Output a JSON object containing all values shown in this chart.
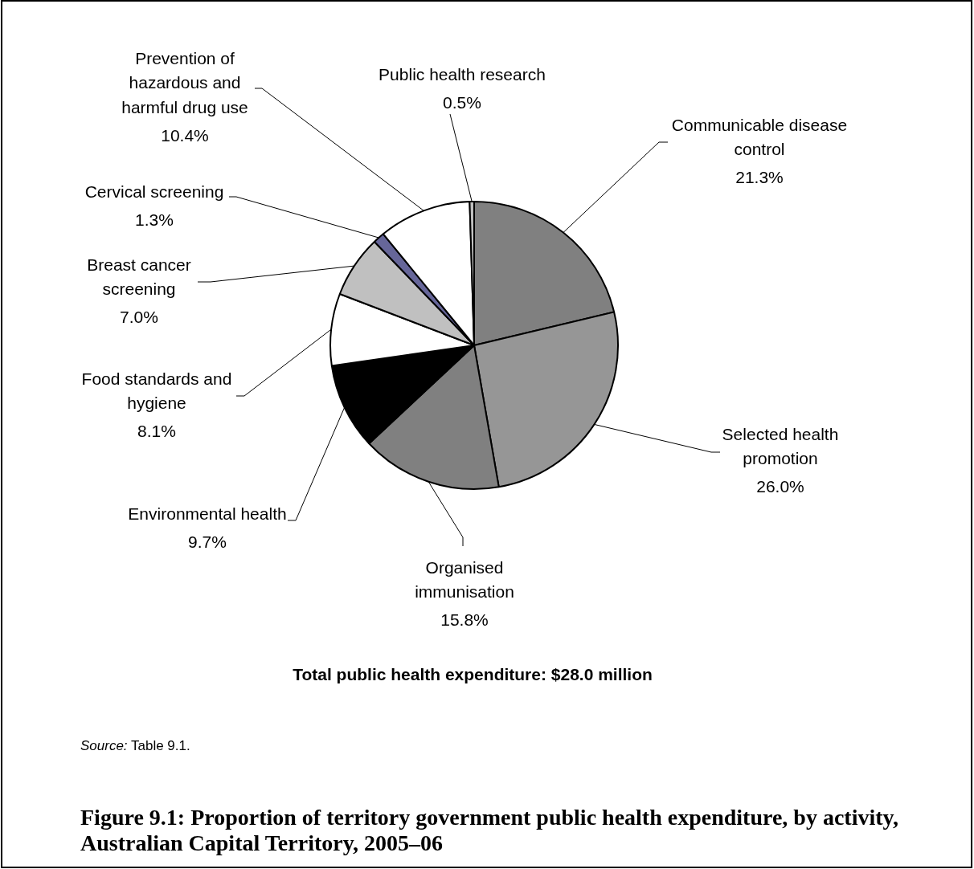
{
  "chart_data": {
    "type": "pie",
    "title": "Figure 9.1: Proportion of territory government public health expenditure, by activity, Australian Capital Territory, 2005–06",
    "categories": [
      "Communicable disease control",
      "Selected health promotion",
      "Organised immunisation",
      "Environmental health",
      "Food standards and hygiene",
      "Breast cancer screening",
      "Cervical screening",
      "Prevention of hazardous and harmful drug use",
      "Public health research"
    ],
    "values": [
      21.3,
      26.0,
      15.8,
      9.7,
      8.1,
      7.0,
      1.3,
      10.4,
      0.5
    ],
    "colors": [
      "#808080",
      "#969696",
      "#808080",
      "#000000",
      "#ffffff",
      "#c0c0c0",
      "#666699",
      "#ffffff",
      "#c0c0c0"
    ],
    "value_labels": [
      "21.3%",
      "26.0%",
      "15.8%",
      "9.7%",
      "8.1%",
      "7.0%",
      "1.3%",
      "10.4%",
      "0.5%"
    ],
    "annotations": [
      "Total public health expenditure: $28.0 million",
      "Source: Table 9.1."
    ]
  }
}
